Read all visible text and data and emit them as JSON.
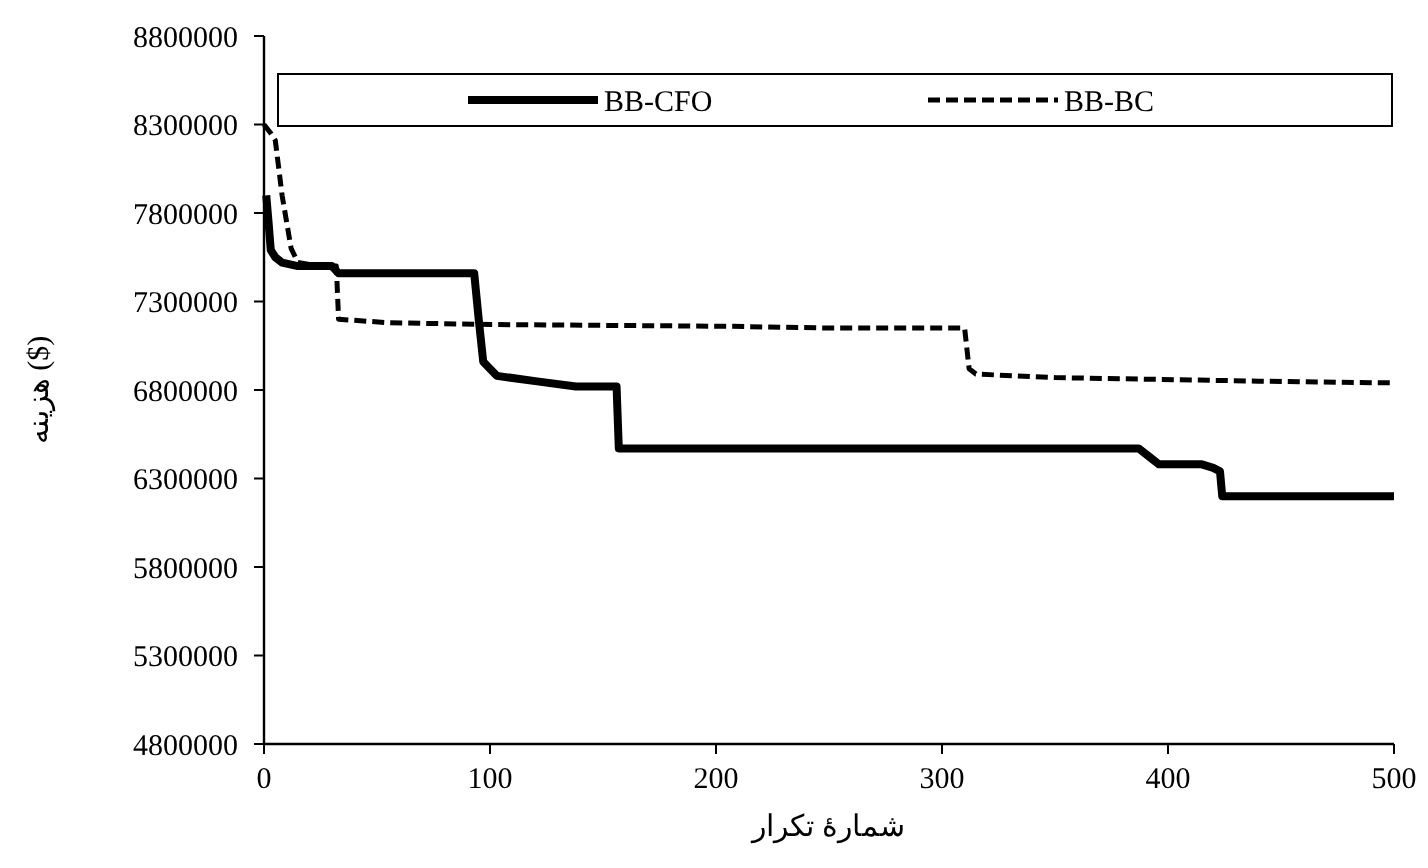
{
  "chart_data": {
    "type": "line",
    "xlabel": "شمارهٔ تکرار",
    "ylabel": "هزینه ($)",
    "xlim": [
      0,
      500
    ],
    "xticks": [
      0,
      100,
      200,
      300,
      400,
      500
    ],
    "ylim": [
      4800000,
      8800000
    ],
    "yticks": [
      4800000,
      5300000,
      5800000,
      6300000,
      6800000,
      7300000,
      7800000,
      8300000,
      8800000
    ],
    "grid": false,
    "legend": "top",
    "series": [
      {
        "name": "BB-CFO",
        "color": "#000000",
        "line_style": "solid",
        "x": [
          1,
          2,
          3,
          5,
          8,
          15,
          30,
          33,
          60,
          93,
          95,
          97,
          103,
          120,
          138,
          156,
          157,
          200,
          300,
          387,
          392,
          396,
          415,
          420,
          423,
          424,
          500
        ],
        "values": [
          7900000,
          7750000,
          7590000,
          7550000,
          7520000,
          7500000,
          7500000,
          7460000,
          7460000,
          7460000,
          7200000,
          6960000,
          6880000,
          6850000,
          6820000,
          6820000,
          6470000,
          6470000,
          6470000,
          6470000,
          6420000,
          6380000,
          6380000,
          6360000,
          6340000,
          6200000,
          6200000
        ]
      },
      {
        "name": "BB-BC",
        "color": "#000000",
        "line_style": "dashed",
        "x": [
          0,
          3,
          5,
          8,
          12,
          15,
          25,
          32,
          33,
          55,
          100,
          205,
          250,
          310,
          312,
          315,
          350,
          440,
          500
        ],
        "values": [
          8300000,
          8250000,
          8210000,
          7900000,
          7600000,
          7520000,
          7500000,
          7500000,
          7200000,
          7180000,
          7170000,
          7160000,
          7150000,
          7150000,
          6920000,
          6890000,
          6870000,
          6850000,
          6840000
        ]
      }
    ]
  }
}
